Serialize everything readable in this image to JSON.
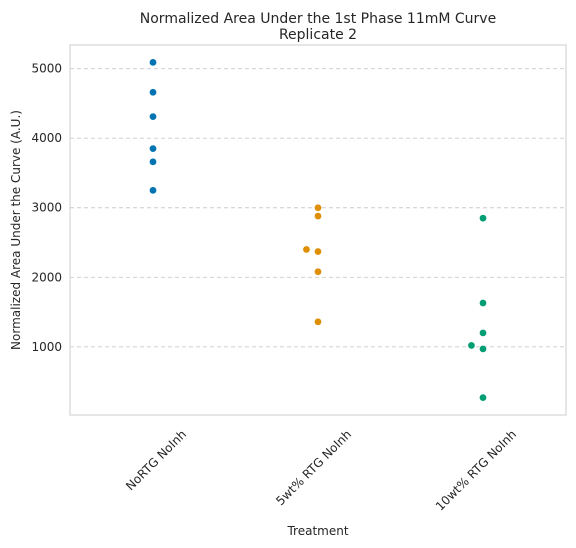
{
  "chart_data": {
    "type": "scatter",
    "title": "Normalized Area Under the 1st Phase 11mM Curve",
    "subtitle": "Replicate 2",
    "xlabel": "Treatment",
    "ylabel": "Normalized Area Under the Curve (A.U.)",
    "ylim": [
      20,
      5340
    ],
    "yticks": [
      "1000",
      "2000",
      "3000",
      "4000",
      "5000"
    ],
    "grid": "y-dashed",
    "categories": [
      "NoRTG NoInh",
      "5wt% RTG NoInh",
      "10wt% RTG NoInh"
    ],
    "colors": [
      "#0173b2",
      "#de8f05",
      "#029e73"
    ],
    "series": [
      {
        "values": [
          5090,
          4660,
          4310,
          3850,
          3660,
          3250
        ],
        "offsets": [
          0,
          0,
          0,
          0,
          0,
          0
        ]
      },
      {
        "values": [
          3000,
          2880,
          2400,
          2370,
          2080,
          1360
        ],
        "offsets": [
          0,
          0,
          -0.07,
          0,
          0,
          0
        ]
      },
      {
        "values": [
          2850,
          1630,
          1200,
          1020,
          970,
          270
        ],
        "offsets": [
          0,
          0,
          0,
          -0.07,
          0,
          0
        ]
      }
    ]
  }
}
